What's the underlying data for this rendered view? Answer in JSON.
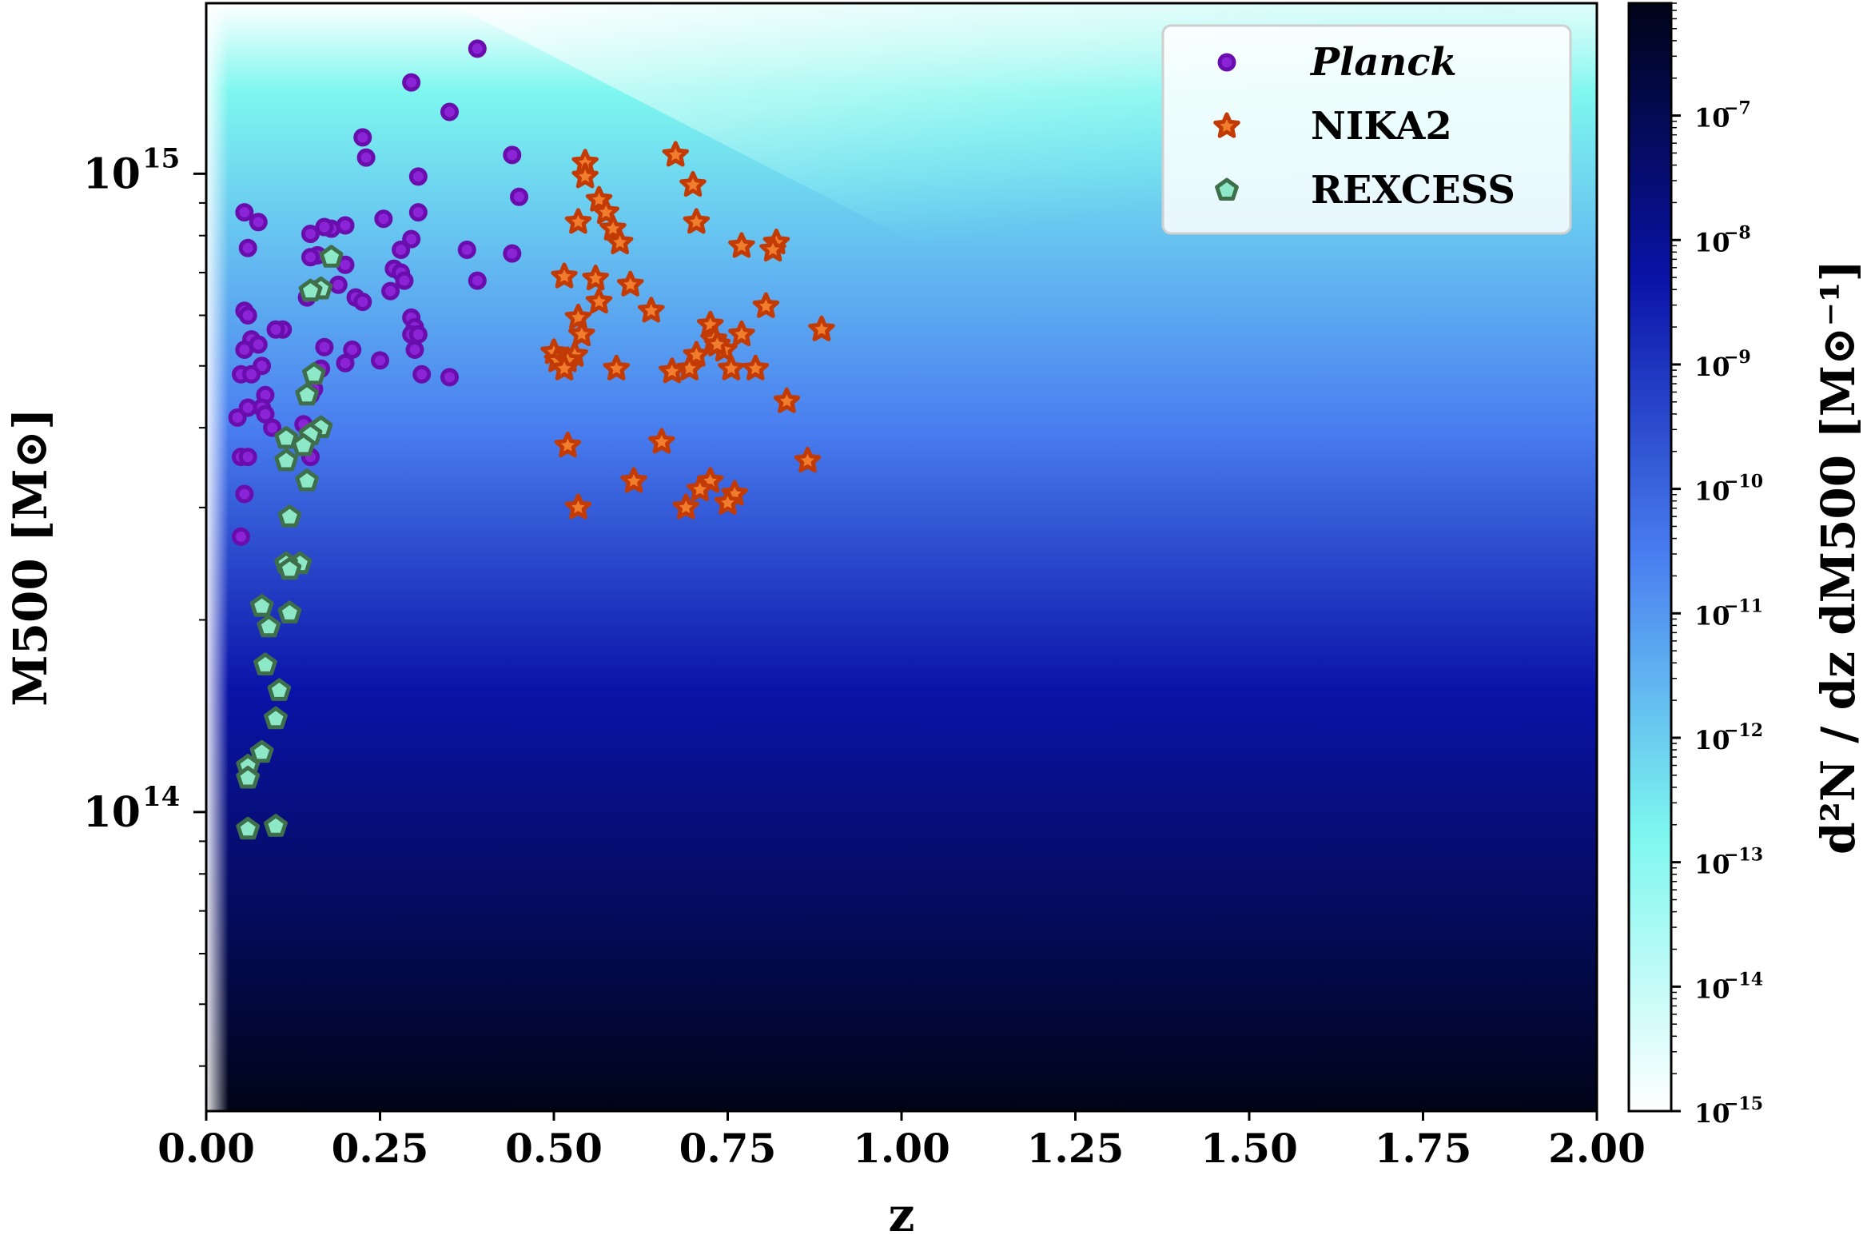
{
  "chart_data": {
    "type": "scatter",
    "xlabel": "z",
    "ylabel": "M500 [M⊙]",
    "colorbar_label": "d²N / dz dM500 [M⊙⁻¹]",
    "x_scale": "linear",
    "y_scale": "log",
    "xlim": [
      0.0,
      2.0
    ],
    "ylim": [
      34000000000000.0,
      1850000000000000.0
    ],
    "x_ticks": [
      "0.00",
      "0.25",
      "0.50",
      "0.75",
      "1.00",
      "1.25",
      "1.50",
      "1.75",
      "2.00"
    ],
    "y_ticks": [
      {
        "value": 100000000000000.0,
        "label_base": "10",
        "label_exp": "14"
      },
      {
        "value": 1000000000000000.0,
        "label_base": "10",
        "label_exp": "15"
      }
    ],
    "colorbar": {
      "scale": "log",
      "range": [
        1e-15,
        8e-07
      ],
      "colormap": [
        "#ffffff",
        "#7df7ef",
        "#4a7ff0",
        "#0a13a8",
        "#000418"
      ],
      "ticks": [
        {
          "base": "10",
          "exp": "−15",
          "value": -15
        },
        {
          "base": "10",
          "exp": "−14",
          "value": -14
        },
        {
          "base": "10",
          "exp": "−13",
          "value": -13
        },
        {
          "base": "10",
          "exp": "−12",
          "value": -12
        },
        {
          "base": "10",
          "exp": "−11",
          "value": -11
        },
        {
          "base": "10",
          "exp": "−10",
          "value": -10
        },
        {
          "base": "10",
          "exp": "−9",
          "value": -9
        },
        {
          "base": "10",
          "exp": "−8",
          "value": -8
        },
        {
          "base": "10",
          "exp": "−7",
          "value": -7
        }
      ]
    },
    "legend": {
      "position": "top-right",
      "entries": [
        "Planck",
        "NIKA2",
        "REXCESS"
      ]
    },
    "series": [
      {
        "name": "Planck",
        "marker": "circle",
        "color": "#8a24d6",
        "edge": "#6a0dad",
        "x": [
          0.39,
          0.295,
          0.35,
          0.225,
          0.23,
          0.44,
          0.305,
          0.45,
          0.055,
          0.075,
          0.305,
          0.255,
          0.2,
          0.18,
          0.17,
          0.15,
          0.295,
          0.06,
          0.375,
          0.28,
          0.44,
          0.16,
          0.15,
          0.27,
          0.2,
          0.28,
          0.285,
          0.39,
          0.19,
          0.16,
          0.265,
          0.215,
          0.145,
          0.225,
          0.055,
          0.06,
          0.295,
          0.3,
          0.295,
          0.305,
          0.065,
          0.11,
          0.1,
          0.075,
          0.17,
          0.055,
          0.21,
          0.25,
          0.3,
          0.31,
          0.35,
          0.165,
          0.2,
          0.08,
          0.05,
          0.155,
          0.065,
          0.085,
          0.15,
          0.08,
          0.06,
          0.045,
          0.085,
          0.095,
          0.14,
          0.05,
          0.06,
          0.055,
          0.05,
          0.15
        ],
        "y": [
          1570000000000000.0,
          1390000000000000.0,
          1250000000000000.0,
          1140000000000000.0,
          1060000000000000.0,
          1070000000000000.0,
          990000000000000.0,
          920000000000000.0,
          870000000000000.0,
          840000000000000.0,
          870000000000000.0,
          850000000000000.0,
          830000000000000.0,
          820000000000000.0,
          825000000000000.0,
          805000000000000.0,
          790000000000000.0,
          765000000000000.0,
          760000000000000.0,
          760000000000000.0,
          750000000000000.0,
          745000000000000.0,
          740000000000000.0,
          710000000000000.0,
          720000000000000.0,
          700000000000000.0,
          680000000000000.0,
          680000000000000.0,
          670000000000000.0,
          660000000000000.0,
          655000000000000.0,
          640000000000000.0,
          640000000000000.0,
          630000000000000.0,
          610000000000000.0,
          600000000000000.0,
          595000000000000.0,
          575000000000000.0,
          560000000000000.0,
          560000000000000.0,
          550000000000000.0,
          570000000000000.0,
          570000000000000.0,
          540000000000000.0,
          535000000000000.0,
          530000000000000.0,
          530000000000000.0,
          510000000000000.0,
          530000000000000.0,
          485000000000000.0,
          480000000000000.0,
          495000000000000.0,
          505000000000000.0,
          500000000000000.0,
          485000000000000.0,
          460000000000000.0,
          485000000000000.0,
          450000000000000.0,
          450000000000000.0,
          430000000000000.0,
          430000000000000.0,
          415000000000000.0,
          420000000000000.0,
          400000000000000.0,
          405000000000000.0,
          360000000000000.0,
          360000000000000.0,
          315000000000000.0,
          270000000000000.0,
          360000000000000.0
        ]
      },
      {
        "name": "NIKA2",
        "marker": "star",
        "color": "#f07d2d",
        "edge": "#c23b06",
        "x": [
          0.675,
          0.545,
          0.545,
          0.7,
          0.565,
          0.575,
          0.535,
          0.705,
          0.585,
          0.595,
          0.77,
          0.82,
          0.815,
          0.515,
          0.56,
          0.61,
          0.565,
          0.64,
          0.805,
          0.535,
          0.885,
          0.725,
          0.54,
          0.73,
          0.77,
          0.745,
          0.735,
          0.5,
          0.53,
          0.705,
          0.505,
          0.52,
          0.515,
          0.695,
          0.79,
          0.755,
          0.59,
          0.67,
          0.835,
          0.52,
          0.655,
          0.865,
          0.725,
          0.615,
          0.71,
          0.76,
          0.75,
          0.535,
          0.69
        ],
        "y": [
          1070000000000000.0,
          1040000000000000.0,
          990000000000000.0,
          960000000000000.0,
          910000000000000.0,
          870000000000000.0,
          840000000000000.0,
          840000000000000.0,
          820000000000000.0,
          780000000000000.0,
          770000000000000.0,
          780000000000000.0,
          760000000000000.0,
          690000000000000.0,
          685000000000000.0,
          670000000000000.0,
          630000000000000.0,
          610000000000000.0,
          620000000000000.0,
          595000000000000.0,
          570000000000000.0,
          580000000000000.0,
          560000000000000.0,
          550000000000000.0,
          560000000000000.0,
          530000000000000.0,
          540000000000000.0,
          525000000000000.0,
          520000000000000.0,
          520000000000000.0,
          510000000000000.0,
          510000000000000.0,
          495000000000000.0,
          495000000000000.0,
          495000000000000.0,
          495000000000000.0,
          495000000000000.0,
          490000000000000.0,
          440000000000000.0,
          375000000000000.0,
          380000000000000.0,
          355000000000000.0,
          330000000000000.0,
          330000000000000.0,
          320000000000000.0,
          315000000000000.0,
          305000000000000.0,
          300000000000000.0,
          300000000000000.0
        ]
      },
      {
        "name": "REXCESS",
        "marker": "pentagon",
        "color": "#8de8c8",
        "edge": "#3f6f4a",
        "x": [
          0.18,
          0.165,
          0.15,
          0.155,
          0.145,
          0.165,
          0.15,
          0.115,
          0.14,
          0.115,
          0.145,
          0.12,
          0.135,
          0.115,
          0.12,
          0.08,
          0.12,
          0.09,
          0.085,
          0.105,
          0.1,
          0.08,
          0.06,
          0.06,
          0.06,
          0.1
        ],
        "y": [
          740000000000000.0,
          660000000000000.0,
          655000000000000.0,
          485000000000000.0,
          450000000000000.0,
          400000000000000.0,
          390000000000000.0,
          385000000000000.0,
          375000000000000.0,
          355000000000000.0,
          330000000000000.0,
          290000000000000.0,
          245000000000000.0,
          245000000000000.0,
          240000000000000.0,
          210000000000000.0,
          205000000000000.0,
          195000000000000.0,
          170000000000000.0,
          155000000000000.0,
          140000000000000.0,
          124000000000000.0,
          118000000000000.0,
          113000000000000.0,
          94000000000000.0,
          95000000000000.0
        ]
      }
    ]
  }
}
